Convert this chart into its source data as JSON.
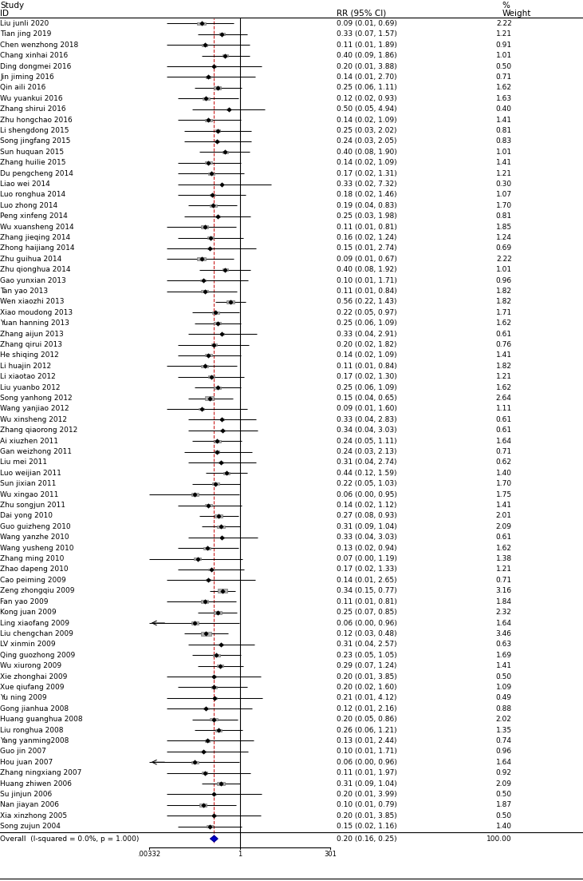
{
  "studies": [
    {
      "id": "Liu junli 2020",
      "rr": 0.09,
      "ci_lo": 0.01,
      "ci_hi": 0.69,
      "weight": 2.22,
      "ci_str": "0.09 (0.01, 0.69)",
      "w_str": "2.22"
    },
    {
      "id": "Tian jing 2019",
      "rr": 0.33,
      "ci_lo": 0.07,
      "ci_hi": 1.57,
      "weight": 1.21,
      "ci_str": "0.33 (0.07, 1.57)",
      "w_str": "1.21"
    },
    {
      "id": "Chen wenzhong 2018",
      "rr": 0.11,
      "ci_lo": 0.01,
      "ci_hi": 1.89,
      "weight": 0.91,
      "ci_str": "0.11 (0.01, 1.89)",
      "w_str": "0.91"
    },
    {
      "id": "Chang xinhai 2016",
      "rr": 0.4,
      "ci_lo": 0.09,
      "ci_hi": 1.86,
      "weight": 1.01,
      "ci_str": "0.40 (0.09, 1.86)",
      "w_str": "1.01"
    },
    {
      "id": "Ding dongmei 2016",
      "rr": 0.2,
      "ci_lo": 0.01,
      "ci_hi": 3.88,
      "weight": 0.5,
      "ci_str": "0.20 (0.01, 3.88)",
      "w_str": "0.50"
    },
    {
      "id": "Jin jiming 2016",
      "rr": 0.14,
      "ci_lo": 0.01,
      "ci_hi": 2.7,
      "weight": 0.71,
      "ci_str": "0.14 (0.01, 2.70)",
      "w_str": "0.71"
    },
    {
      "id": "Qin aili 2016",
      "rr": 0.25,
      "ci_lo": 0.06,
      "ci_hi": 1.11,
      "weight": 1.62,
      "ci_str": "0.25 (0.06, 1.11)",
      "w_str": "1.62"
    },
    {
      "id": "Wu yuankui 2016",
      "rr": 0.12,
      "ci_lo": 0.02,
      "ci_hi": 0.93,
      "weight": 1.63,
      "ci_str": "0.12 (0.02, 0.93)",
      "w_str": "1.63"
    },
    {
      "id": "Zhang shirui 2016",
      "rr": 0.5,
      "ci_lo": 0.05,
      "ci_hi": 4.94,
      "weight": 0.4,
      "ci_str": "0.50 (0.05, 4.94)",
      "w_str": "0.40"
    },
    {
      "id": "Zhu hongchao 2016",
      "rr": 0.14,
      "ci_lo": 0.02,
      "ci_hi": 1.09,
      "weight": 1.41,
      "ci_str": "0.14 (0.02, 1.09)",
      "w_str": "1.41"
    },
    {
      "id": "Li shengdong 2015",
      "rr": 0.25,
      "ci_lo": 0.03,
      "ci_hi": 2.02,
      "weight": 0.81,
      "ci_str": "0.25 (0.03, 2.02)",
      "w_str": "0.81"
    },
    {
      "id": "Song jingfang 2015",
      "rr": 0.24,
      "ci_lo": 0.03,
      "ci_hi": 2.05,
      "weight": 0.83,
      "ci_str": "0.24 (0.03, 2.05)",
      "w_str": "0.83"
    },
    {
      "id": "Sun huquan 2015",
      "rr": 0.4,
      "ci_lo": 0.08,
      "ci_hi": 1.9,
      "weight": 1.01,
      "ci_str": "0.40 (0.08, 1.90)",
      "w_str": "1.01"
    },
    {
      "id": "Zhang huilie 2015",
      "rr": 0.14,
      "ci_lo": 0.02,
      "ci_hi": 1.09,
      "weight": 1.41,
      "ci_str": "0.14 (0.02, 1.09)",
      "w_str": "1.41"
    },
    {
      "id": "Du pengcheng 2014",
      "rr": 0.17,
      "ci_lo": 0.02,
      "ci_hi": 1.31,
      "weight": 1.21,
      "ci_str": "0.17 (0.02, 1.31)",
      "w_str": "1.21"
    },
    {
      "id": "Liao wei 2014",
      "rr": 0.33,
      "ci_lo": 0.02,
      "ci_hi": 7.32,
      "weight": 0.3,
      "ci_str": "0.33 (0.02, 7.32)",
      "w_str": "0.30"
    },
    {
      "id": "Luo ronghua 2014",
      "rr": 0.18,
      "ci_lo": 0.02,
      "ci_hi": 1.46,
      "weight": 1.07,
      "ci_str": "0.18 (0.02, 1.46)",
      "w_str": "1.07"
    },
    {
      "id": "Luo zhong 2014",
      "rr": 0.19,
      "ci_lo": 0.04,
      "ci_hi": 0.83,
      "weight": 1.7,
      "ci_str": "0.19 (0.04, 0.83)",
      "w_str": "1.70"
    },
    {
      "id": "Peng xinfeng 2014",
      "rr": 0.25,
      "ci_lo": 0.03,
      "ci_hi": 1.98,
      "weight": 0.81,
      "ci_str": "0.25 (0.03, 1.98)",
      "w_str": "0.81"
    },
    {
      "id": "Wu xuansheng 2014",
      "rr": 0.11,
      "ci_lo": 0.01,
      "ci_hi": 0.81,
      "weight": 1.85,
      "ci_str": "0.11 (0.01, 0.81)",
      "w_str": "1.85"
    },
    {
      "id": "Zhang jieqing 2014",
      "rr": 0.16,
      "ci_lo": 0.02,
      "ci_hi": 1.24,
      "weight": 1.24,
      "ci_str": "0.16 (0.02, 1.24)",
      "w_str": "1.24"
    },
    {
      "id": "Zhong haijiang 2014",
      "rr": 0.15,
      "ci_lo": 0.01,
      "ci_hi": 2.74,
      "weight": 0.69,
      "ci_str": "0.15 (0.01, 2.74)",
      "w_str": "0.69"
    },
    {
      "id": "Zhu guihua 2014",
      "rr": 0.09,
      "ci_lo": 0.01,
      "ci_hi": 0.67,
      "weight": 2.22,
      "ci_str": "0.09 (0.01, 0.67)",
      "w_str": "2.22"
    },
    {
      "id": "Zhu qionghua 2014",
      "rr": 0.4,
      "ci_lo": 0.08,
      "ci_hi": 1.92,
      "weight": 1.01,
      "ci_str": "0.40 (0.08, 1.92)",
      "w_str": "1.01"
    },
    {
      "id": "Gao yunxian 2013",
      "rr": 0.1,
      "ci_lo": 0.01,
      "ci_hi": 1.71,
      "weight": 0.96,
      "ci_str": "0.10 (0.01, 1.71)",
      "w_str": "0.96"
    },
    {
      "id": "Tan yao 2013",
      "rr": 0.11,
      "ci_lo": 0.01,
      "ci_hi": 0.84,
      "weight": 1.82,
      "ci_str": "0.11 (0.01, 0.84)",
      "w_str": "1.82"
    },
    {
      "id": "Wen xiaozhi 2013",
      "rr": 0.56,
      "ci_lo": 0.22,
      "ci_hi": 1.43,
      "weight": 1.82,
      "ci_str": "0.56 (0.22, 1.43)",
      "w_str": "1.82"
    },
    {
      "id": "Xiao moudong 2013",
      "rr": 0.22,
      "ci_lo": 0.05,
      "ci_hi": 0.97,
      "weight": 1.71,
      "ci_str": "0.22 (0.05, 0.97)",
      "w_str": "1.71"
    },
    {
      "id": "Yuan hanning 2013",
      "rr": 0.25,
      "ci_lo": 0.06,
      "ci_hi": 1.09,
      "weight": 1.62,
      "ci_str": "0.25 (0.06, 1.09)",
      "w_str": "1.62"
    },
    {
      "id": "Zhang aijun 2013",
      "rr": 0.33,
      "ci_lo": 0.04,
      "ci_hi": 2.91,
      "weight": 0.61,
      "ci_str": "0.33 (0.04, 2.91)",
      "w_str": "0.61"
    },
    {
      "id": "Zhang qirui 2013",
      "rr": 0.2,
      "ci_lo": 0.02,
      "ci_hi": 1.82,
      "weight": 0.76,
      "ci_str": "0.20 (0.02, 1.82)",
      "w_str": "0.76"
    },
    {
      "id": "He shiqing 2012",
      "rr": 0.14,
      "ci_lo": 0.02,
      "ci_hi": 1.09,
      "weight": 1.41,
      "ci_str": "0.14 (0.02, 1.09)",
      "w_str": "1.41"
    },
    {
      "id": "Li huajin 2012",
      "rr": 0.11,
      "ci_lo": 0.01,
      "ci_hi": 0.84,
      "weight": 1.82,
      "ci_str": "0.11 (0.01, 0.84)",
      "w_str": "1.82"
    },
    {
      "id": "Li xiaotao 2012",
      "rr": 0.17,
      "ci_lo": 0.02,
      "ci_hi": 1.3,
      "weight": 1.21,
      "ci_str": "0.17 (0.02, 1.30)",
      "w_str": "1.21"
    },
    {
      "id": "Liu yuanbo 2012",
      "rr": 0.25,
      "ci_lo": 0.06,
      "ci_hi": 1.09,
      "weight": 1.62,
      "ci_str": "0.25 (0.06, 1.09)",
      "w_str": "1.62"
    },
    {
      "id": "Song yanhong 2012",
      "rr": 0.15,
      "ci_lo": 0.04,
      "ci_hi": 0.65,
      "weight": 2.64,
      "ci_str": "0.15 (0.04, 0.65)",
      "w_str": "2.64"
    },
    {
      "id": "Wang yanjiao 2012",
      "rr": 0.09,
      "ci_lo": 0.01,
      "ci_hi": 1.6,
      "weight": 1.11,
      "ci_str": "0.09 (0.01, 1.60)",
      "w_str": "1.11"
    },
    {
      "id": "Wu xinsheng 2012",
      "rr": 0.33,
      "ci_lo": 0.04,
      "ci_hi": 2.83,
      "weight": 0.61,
      "ci_str": "0.33 (0.04, 2.83)",
      "w_str": "0.61"
    },
    {
      "id": "Zhang qiaorong 2012",
      "rr": 0.34,
      "ci_lo": 0.04,
      "ci_hi": 3.03,
      "weight": 0.61,
      "ci_str": "0.34 (0.04, 3.03)",
      "w_str": "0.61"
    },
    {
      "id": "Ai xiuzhen 2011",
      "rr": 0.24,
      "ci_lo": 0.05,
      "ci_hi": 1.11,
      "weight": 1.64,
      "ci_str": "0.24 (0.05, 1.11)",
      "w_str": "1.64"
    },
    {
      "id": "Gan weizhong 2011",
      "rr": 0.24,
      "ci_lo": 0.03,
      "ci_hi": 2.13,
      "weight": 0.71,
      "ci_str": "0.24 (0.03, 2.13)",
      "w_str": "0.71"
    },
    {
      "id": "Liu mei 2011",
      "rr": 0.31,
      "ci_lo": 0.04,
      "ci_hi": 2.74,
      "weight": 0.62,
      "ci_str": "0.31 (0.04, 2.74)",
      "w_str": "0.62"
    },
    {
      "id": "Luo weijian 2011",
      "rr": 0.44,
      "ci_lo": 0.12,
      "ci_hi": 1.59,
      "weight": 1.4,
      "ci_str": "0.44 (0.12, 1.59)",
      "w_str": "1.40"
    },
    {
      "id": "Sun jixian 2011",
      "rr": 0.22,
      "ci_lo": 0.05,
      "ci_hi": 1.03,
      "weight": 1.7,
      "ci_str": "0.22 (0.05, 1.03)",
      "w_str": "1.70"
    },
    {
      "id": "Wu xingao 2011",
      "rr": 0.06,
      "ci_lo": 0.001,
      "ci_hi": 0.95,
      "weight": 1.75,
      "ci_str": "0.06 (0.00, 0.95)",
      "w_str": "1.75"
    },
    {
      "id": "Zhu songjun 2011",
      "rr": 0.14,
      "ci_lo": 0.02,
      "ci_hi": 1.12,
      "weight": 1.41,
      "ci_str": "0.14 (0.02, 1.12)",
      "w_str": "1.41"
    },
    {
      "id": "Dai yong 2010",
      "rr": 0.27,
      "ci_lo": 0.08,
      "ci_hi": 0.93,
      "weight": 2.01,
      "ci_str": "0.27 (0.08, 0.93)",
      "w_str": "2.01"
    },
    {
      "id": "Guo guizheng 2010",
      "rr": 0.31,
      "ci_lo": 0.09,
      "ci_hi": 1.04,
      "weight": 2.09,
      "ci_str": "0.31 (0.09, 1.04)",
      "w_str": "2.09"
    },
    {
      "id": "Wang yanzhe 2010",
      "rr": 0.33,
      "ci_lo": 0.04,
      "ci_hi": 3.03,
      "weight": 0.61,
      "ci_str": "0.33 (0.04, 3.03)",
      "w_str": "0.61"
    },
    {
      "id": "Wang yusheng 2010",
      "rr": 0.13,
      "ci_lo": 0.02,
      "ci_hi": 0.94,
      "weight": 1.62,
      "ci_str": "0.13 (0.02, 0.94)",
      "w_str": "1.62"
    },
    {
      "id": "Zhang ming 2010",
      "rr": 0.07,
      "ci_lo": 0.001,
      "ci_hi": 1.19,
      "weight": 1.38,
      "ci_str": "0.07 (0.00, 1.19)",
      "w_str": "1.38"
    },
    {
      "id": "Zhao dapeng 2010",
      "rr": 0.17,
      "ci_lo": 0.02,
      "ci_hi": 1.33,
      "weight": 1.21,
      "ci_str": "0.17 (0.02, 1.33)",
      "w_str": "1.21"
    },
    {
      "id": "Cao peiming 2009",
      "rr": 0.14,
      "ci_lo": 0.01,
      "ci_hi": 2.65,
      "weight": 0.71,
      "ci_str": "0.14 (0.01, 2.65)",
      "w_str": "0.71"
    },
    {
      "id": "Zeng zhongqiu 2009",
      "rr": 0.34,
      "ci_lo": 0.15,
      "ci_hi": 0.77,
      "weight": 3.16,
      "ci_str": "0.34 (0.15, 0.77)",
      "w_str": "3.16"
    },
    {
      "id": "Fan yao 2009",
      "rr": 0.11,
      "ci_lo": 0.01,
      "ci_hi": 0.81,
      "weight": 1.84,
      "ci_str": "0.11 (0.01, 0.81)",
      "w_str": "1.84"
    },
    {
      "id": "Kong juan 2009",
      "rr": 0.25,
      "ci_lo": 0.07,
      "ci_hi": 0.85,
      "weight": 2.32,
      "ci_str": "0.25 (0.07, 0.85)",
      "w_str": "2.32"
    },
    {
      "id": "Ling xiaofang 2009",
      "rr": 0.06,
      "ci_lo": 0.001,
      "ci_hi": 0.96,
      "weight": 1.64,
      "ci_str": "0.06 (0.00, 0.96)",
      "w_str": "1.64",
      "arrow_left": true
    },
    {
      "id": "Liu chengchan 2009",
      "rr": 0.12,
      "ci_lo": 0.03,
      "ci_hi": 0.48,
      "weight": 3.46,
      "ci_str": "0.12 (0.03, 0.48)",
      "w_str": "3.46"
    },
    {
      "id": "LV xinmin 2009",
      "rr": 0.31,
      "ci_lo": 0.04,
      "ci_hi": 2.57,
      "weight": 0.63,
      "ci_str": "0.31 (0.04, 2.57)",
      "w_str": "0.63"
    },
    {
      "id": "Qing guozhong 2009",
      "rr": 0.23,
      "ci_lo": 0.05,
      "ci_hi": 1.05,
      "weight": 1.69,
      "ci_str": "0.23 (0.05, 1.05)",
      "w_str": "1.69"
    },
    {
      "id": "Wu xiurong 2009",
      "rr": 0.29,
      "ci_lo": 0.07,
      "ci_hi": 1.24,
      "weight": 1.41,
      "ci_str": "0.29 (0.07, 1.24)",
      "w_str": "1.41"
    },
    {
      "id": "Xie zhonghai 2009",
      "rr": 0.2,
      "ci_lo": 0.01,
      "ci_hi": 3.85,
      "weight": 0.5,
      "ci_str": "0.20 (0.01, 3.85)",
      "w_str": "0.50"
    },
    {
      "id": "Xue qiufang 2009",
      "rr": 0.2,
      "ci_lo": 0.02,
      "ci_hi": 1.6,
      "weight": 1.09,
      "ci_str": "0.20 (0.02, 1.60)",
      "w_str": "1.09"
    },
    {
      "id": "Yu ning 2009",
      "rr": 0.21,
      "ci_lo": 0.01,
      "ci_hi": 4.12,
      "weight": 0.49,
      "ci_str": "0.21 (0.01, 4.12)",
      "w_str": "0.49"
    },
    {
      "id": "Gong jianhua 2008",
      "rr": 0.12,
      "ci_lo": 0.01,
      "ci_hi": 2.16,
      "weight": 0.88,
      "ci_str": "0.12 (0.01, 2.16)",
      "w_str": "0.88"
    },
    {
      "id": "Huang guanghua 2008",
      "rr": 0.2,
      "ci_lo": 0.05,
      "ci_hi": 0.86,
      "weight": 2.02,
      "ci_str": "0.20 (0.05, 0.86)",
      "w_str": "2.02"
    },
    {
      "id": "Liu ronghua 2008",
      "rr": 0.26,
      "ci_lo": 0.06,
      "ci_hi": 1.21,
      "weight": 1.35,
      "ci_str": "0.26 (0.06, 1.21)",
      "w_str": "1.35"
    },
    {
      "id": "Yang yanming2008",
      "rr": 0.13,
      "ci_lo": 0.01,
      "ci_hi": 2.44,
      "weight": 0.74,
      "ci_str": "0.13 (0.01, 2.44)",
      "w_str": "0.74"
    },
    {
      "id": "Guo jin 2007",
      "rr": 0.1,
      "ci_lo": 0.01,
      "ci_hi": 1.71,
      "weight": 0.96,
      "ci_str": "0.10 (0.01, 1.71)",
      "w_str": "0.96"
    },
    {
      "id": "Hou juan 2007",
      "rr": 0.06,
      "ci_lo": 0.001,
      "ci_hi": 0.96,
      "weight": 1.64,
      "ci_str": "0.06 (0.00, 0.96)",
      "w_str": "1.64",
      "arrow_left": true
    },
    {
      "id": "Zhang ningxiang 2007",
      "rr": 0.11,
      "ci_lo": 0.01,
      "ci_hi": 1.97,
      "weight": 0.92,
      "ci_str": "0.11 (0.01, 1.97)",
      "w_str": "0.92"
    },
    {
      "id": "Huang zhiwen 2006",
      "rr": 0.31,
      "ci_lo": 0.09,
      "ci_hi": 1.04,
      "weight": 2.09,
      "ci_str": "0.31 (0.09, 1.04)",
      "w_str": "2.09"
    },
    {
      "id": "Su jinjun 2006",
      "rr": 0.2,
      "ci_lo": 0.01,
      "ci_hi": 3.99,
      "weight": 0.5,
      "ci_str": "0.20 (0.01, 3.99)",
      "w_str": "0.50"
    },
    {
      "id": "Nan jiayan 2006",
      "rr": 0.1,
      "ci_lo": 0.01,
      "ci_hi": 0.79,
      "weight": 1.87,
      "ci_str": "0.10 (0.01, 0.79)",
      "w_str": "1.87"
    },
    {
      "id": "Xia xinzhong 2005",
      "rr": 0.2,
      "ci_lo": 0.01,
      "ci_hi": 3.85,
      "weight": 0.5,
      "ci_str": "0.20 (0.01, 3.85)",
      "w_str": "0.50"
    },
    {
      "id": "Song zujun 2004",
      "rr": 0.15,
      "ci_lo": 0.02,
      "ci_hi": 1.16,
      "weight": 1.4,
      "ci_str": "0.15 (0.02, 1.16)",
      "w_str": "1.40"
    }
  ],
  "overall": {
    "rr": 0.2,
    "ci_lo": 0.16,
    "ci_hi": 0.25,
    "ci_str": "0.20 (0.16, 0.25)",
    "w_str": "100.00",
    "label": "Overall  (I-squared = 0.0%, p = 1.000)"
  },
  "bg_color": "#ffffff",
  "overall_diamond_color": "#0000cd",
  "overall_diamond_edge_color": "#00008b",
  "red_dashed_color": "#cc2222"
}
